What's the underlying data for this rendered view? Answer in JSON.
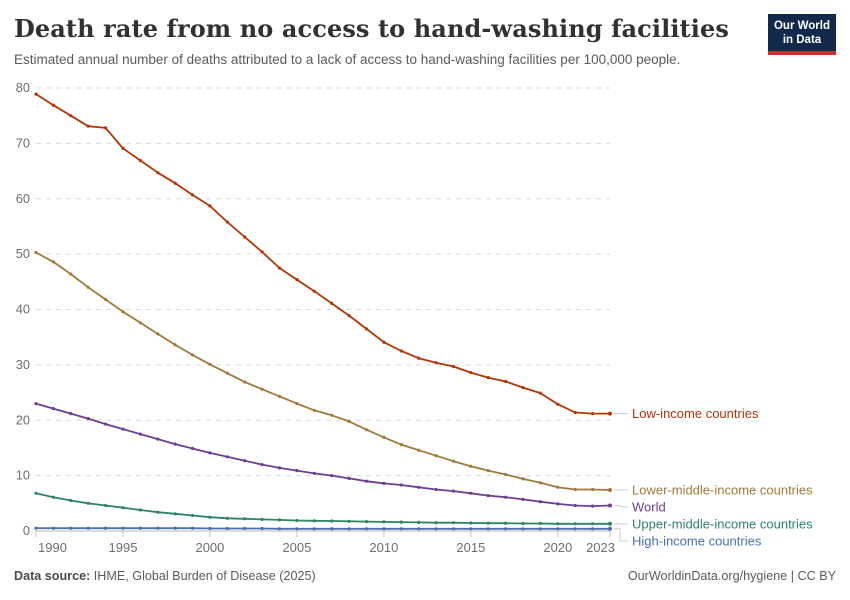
{
  "header": {
    "title": "Death rate from no access to hand-washing facilities",
    "subtitle": "Estimated annual number of deaths attributed to a lack of access to hand-washing facilities per 100,000 people.",
    "logo": {
      "line1": "Our World",
      "line2": "in Data",
      "bg_color": "#12294C",
      "accent_color": "#C5342B"
    }
  },
  "chart_data": {
    "type": "line",
    "title": "Death rate from no access to hand-washing facilities",
    "xlabel": "",
    "ylabel": "",
    "xlim": [
      1990,
      2023
    ],
    "ylim": [
      0,
      80
    ],
    "xticks": [
      1990,
      1995,
      2000,
      2005,
      2010,
      2015,
      2020,
      2023
    ],
    "yticks": [
      0,
      10,
      20,
      30,
      40,
      50,
      60,
      70,
      80
    ],
    "grid": "horizontal-dashed",
    "legend_position": "right-end-labels",
    "x": [
      1990,
      1991,
      1992,
      1993,
      1994,
      1995,
      1996,
      1997,
      1998,
      1999,
      2000,
      2001,
      2002,
      2003,
      2004,
      2005,
      2006,
      2007,
      2008,
      2009,
      2010,
      2011,
      2012,
      2013,
      2014,
      2015,
      2016,
      2017,
      2018,
      2019,
      2020,
      2021,
      2022,
      2023
    ],
    "series": [
      {
        "name": "Low-income countries",
        "color": "#B13507",
        "values": [
          78.9,
          76.9,
          75.0,
          73.1,
          72.8,
          69.1,
          66.9,
          64.7,
          62.8,
          60.7,
          58.7,
          55.8,
          53.1,
          50.4,
          47.5,
          45.4,
          43.3,
          41.1,
          38.9,
          36.5,
          34.1,
          32.5,
          31.2,
          30.4,
          29.7,
          28.6,
          27.7,
          27.0,
          25.9,
          24.9,
          22.9,
          21.4,
          21.2,
          21.2
        ]
      },
      {
        "name": "Lower-middle-income countries",
        "color": "#A2793A",
        "values": [
          50.3,
          48.6,
          46.4,
          44.0,
          41.8,
          39.6,
          37.6,
          35.6,
          33.6,
          31.8,
          30.1,
          28.5,
          26.9,
          25.6,
          24.3,
          23.0,
          21.8,
          20.9,
          19.8,
          18.3,
          16.9,
          15.6,
          14.6,
          13.6,
          12.6,
          11.7,
          10.9,
          10.2,
          9.4,
          8.7,
          7.9,
          7.5,
          7.5,
          7.4
        ]
      },
      {
        "name": "World",
        "color": "#6D3E91",
        "values": [
          23.0,
          22.1,
          21.2,
          20.3,
          19.3,
          18.4,
          17.5,
          16.6,
          15.7,
          14.9,
          14.1,
          13.4,
          12.7,
          12.0,
          11.4,
          10.9,
          10.4,
          10.0,
          9.5,
          9.0,
          8.6,
          8.3,
          7.9,
          7.5,
          7.2,
          6.8,
          6.4,
          6.1,
          5.7,
          5.3,
          4.9,
          4.6,
          4.5,
          4.6
        ]
      },
      {
        "name": "Upper-middle-income countries",
        "color": "#2C8465",
        "values": [
          6.8,
          6.1,
          5.5,
          5.0,
          4.6,
          4.2,
          3.8,
          3.4,
          3.1,
          2.8,
          2.5,
          2.3,
          2.2,
          2.1,
          2.0,
          1.9,
          1.85,
          1.8,
          1.75,
          1.7,
          1.65,
          1.6,
          1.55,
          1.5,
          1.5,
          1.45,
          1.4,
          1.4,
          1.35,
          1.35,
          1.3,
          1.3,
          1.3,
          1.3
        ]
      },
      {
        "name": "High-income countries",
        "color": "#4C6FB1",
        "values": [
          0.5,
          0.5,
          0.5,
          0.5,
          0.5,
          0.5,
          0.5,
          0.5,
          0.5,
          0.5,
          0.45,
          0.45,
          0.45,
          0.45,
          0.4,
          0.4,
          0.4,
          0.4,
          0.4,
          0.4,
          0.4,
          0.4,
          0.4,
          0.4,
          0.4,
          0.4,
          0.4,
          0.4,
          0.4,
          0.4,
          0.4,
          0.4,
          0.4,
          0.4
        ]
      }
    ],
    "axis_colors": {
      "grid": "#dcdcdc",
      "axis_line": "#b5b5b5",
      "tick": "#c5c5c5",
      "tick_label": "#6e6e6e"
    }
  },
  "footer": {
    "source_label": "Data source:",
    "source_text": " IHME, Global Burden of Disease (2025)",
    "credit": "OurWorldinData.org/hygiene | CC BY"
  }
}
